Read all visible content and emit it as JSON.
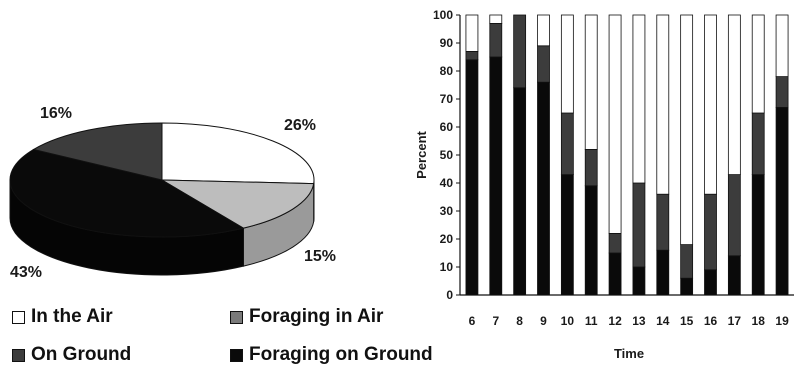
{
  "colors": {
    "in_air": "#ffffff",
    "foraging_air": "#7a7a7a",
    "on_ground": "#3c3c3c",
    "foraging_ground": "#0a0a0a",
    "pie_side_white": "#d8d8d8",
    "pie_side_light": "#9a9a9a",
    "pie_light_top": "#bdbdbd"
  },
  "chart_data": [
    {
      "type": "pie",
      "style": "3d",
      "labels": [
        "26%",
        "15%",
        "43%",
        "16%"
      ],
      "values": [
        26,
        15,
        43,
        16
      ]
    },
    {
      "type": "bar",
      "stacked": true,
      "categories": [
        "6",
        "7",
        "8",
        "9",
        "10",
        "11",
        "12",
        "13",
        "14",
        "15",
        "16",
        "17",
        "18",
        "19"
      ],
      "xlabel": "Time",
      "ylabel": "Percent",
      "ylim": [
        0,
        100
      ],
      "yticks": [
        "0",
        "10",
        "20",
        "30",
        "40",
        "50",
        "60",
        "70",
        "80",
        "90",
        "100"
      ],
      "series": [
        {
          "values": [
            84,
            85,
            74,
            76,
            43,
            39,
            15,
            10,
            16,
            6,
            9,
            14,
            43,
            67
          ]
        },
        {
          "values": [
            3,
            12,
            26,
            13,
            22,
            13,
            7,
            30,
            20,
            12,
            27,
            29,
            22,
            11
          ]
        },
        {
          "values": [
            0,
            0,
            0,
            0,
            0,
            0,
            0,
            0,
            0,
            0,
            0,
            0,
            0,
            0
          ]
        },
        {
          "values": [
            13,
            3,
            0,
            11,
            35,
            48,
            78,
            60,
            64,
            82,
            64,
            57,
            35,
            22
          ]
        }
      ]
    }
  ],
  "legend": [
    {
      "label": "In the Air"
    },
    {
      "label": "Foraging in Air"
    },
    {
      "label": "On Ground"
    },
    {
      "label": "Foraging on Ground"
    }
  ]
}
